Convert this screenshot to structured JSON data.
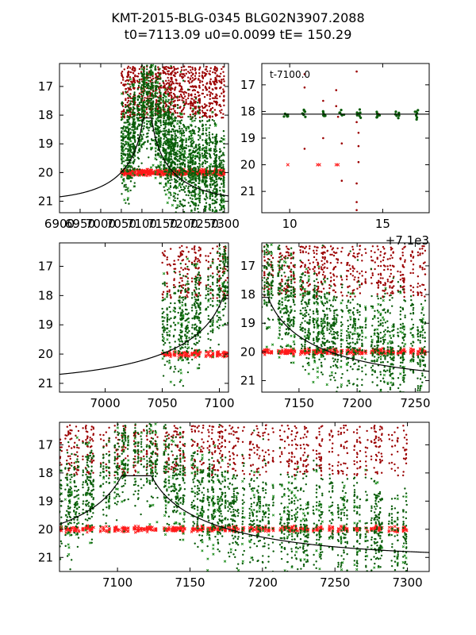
{
  "title": {
    "line1": "KMT-2015-BLG-0345 BLG02N3907.2088",
    "line2": "t0=7113.09 u0=0.0099 tE= 150.29"
  },
  "colors": {
    "dark_red": "#9b0000",
    "red_cross": "#ff1a1a",
    "dark_green": "#0a5c0a",
    "green_cross": "#1f8f1f",
    "model": "#000000"
  },
  "model": {
    "t0": 7113.09,
    "u0": 0.0099,
    "tE": 150.29,
    "baseline_mag": 21.0,
    "peak_mag": 18.1
  },
  "chart_data": [
    {
      "id": "panel-full-top-left",
      "type": "scatter",
      "xlim": [
        6900,
        7310
      ],
      "ylim": [
        21.4,
        16.2
      ],
      "xticks": [
        6900,
        6950,
        7000,
        7050,
        7100,
        7150,
        7200,
        7250,
        7300
      ],
      "xticklabels": [
        "6900",
        "6950",
        "7000",
        "7050",
        "7100",
        "7150",
        "7200",
        "7250",
        "7300"
      ],
      "yticks": [
        17,
        18,
        19,
        20,
        21
      ],
      "yticklabels": [
        "17",
        "18",
        "19",
        "20",
        "21"
      ],
      "data_xrange": [
        7050,
        7300
      ],
      "annotation": "",
      "offset_text": ""
    },
    {
      "id": "panel-peak-zoom",
      "type": "scatter",
      "xlim": [
        8.5,
        17.5
      ],
      "ylim": [
        21.8,
        16.2
      ],
      "xticks": [
        10,
        15
      ],
      "xticklabels": [
        "10",
        "15"
      ],
      "yticks": [
        17,
        18,
        19,
        20,
        21
      ],
      "yticklabels": [
        "17",
        "18",
        "19",
        "20",
        "21"
      ],
      "time_offset": 7100,
      "annotation": "t-7100.0",
      "offset_text": "+7.1e3"
    },
    {
      "id": "panel-prepeak",
      "type": "scatter",
      "xlim": [
        6960,
        7108
      ],
      "ylim": [
        21.3,
        16.2
      ],
      "xticks": [
        7000,
        7050,
        7100
      ],
      "xticklabels": [
        "7000",
        "7050",
        "7100"
      ],
      "yticks": [
        17,
        18,
        19,
        20,
        21
      ],
      "yticklabels": [
        "17",
        "18",
        "19",
        "20",
        "21"
      ],
      "annotation": "",
      "offset_text": ""
    },
    {
      "id": "panel-postpeak",
      "type": "scatter",
      "xlim": [
        7118,
        7262
      ],
      "ylim": [
        21.4,
        16.2
      ],
      "xticks": [
        7150,
        7200,
        7250
      ],
      "xticklabels": [
        "7150",
        "7200",
        "7250"
      ],
      "yticks": [
        17,
        18,
        19,
        20,
        21
      ],
      "yticklabels": [
        "17",
        "18",
        "19",
        "20",
        "21"
      ],
      "annotation": "",
      "offset_text": ""
    },
    {
      "id": "panel-bottom-wide",
      "type": "scatter",
      "xlim": [
        7060,
        7315
      ],
      "ylim": [
        21.5,
        16.2
      ],
      "xticks": [
        7100,
        7150,
        7200,
        7250,
        7300
      ],
      "xticklabels": [
        "7100",
        "7150",
        "7200",
        "7250",
        "7300"
      ],
      "yticks": [
        17,
        18,
        19,
        20,
        21
      ],
      "yticklabels": [
        "17",
        "18",
        "19",
        "20",
        "21"
      ],
      "annotation": "",
      "offset_text": ""
    }
  ]
}
